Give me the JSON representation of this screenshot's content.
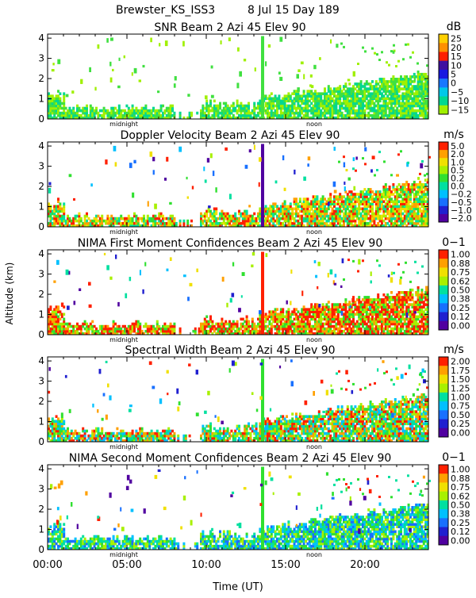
{
  "header": {
    "site": "Brewster_KS_ISS3",
    "date": "8 Jul 15 Day 189"
  },
  "axes": {
    "ylabel": "Altitude (km)",
    "xlabel": "Time (UT)",
    "xticks": [
      "00:00",
      "05:00",
      "10:00",
      "15:00",
      "20:00"
    ],
    "yticks": [
      "0",
      "1",
      "2",
      "3",
      "4"
    ],
    "midnight_label": "midnight",
    "noon_label": "noon"
  },
  "colors": {
    "scale": [
      "#5000a0",
      "#2020d0",
      "#1870ff",
      "#00c0ff",
      "#00e0a0",
      "#30e030",
      "#a8f000",
      "#f0e000",
      "#ffa000",
      "#ff2000"
    ],
    "snr_scale": [
      "#a0f000",
      "#40e040",
      "#00d890",
      "#00c8e8",
      "#1878ff",
      "#1818e0",
      "#4010a0",
      "#ff2000",
      "#ff9000",
      "#ffd000"
    ]
  },
  "chart_data": [
    {
      "type": "heatmap",
      "title": "SNR Beam 2 Azi  45 Elev 90",
      "units": "dB",
      "xlim": [
        0,
        24
      ],
      "ylim": [
        0,
        4.2
      ],
      "colorbar": [
        "25",
        "20",
        "15",
        "10",
        "5",
        "0",
        "−5",
        "−10",
        "−15"
      ]
    },
    {
      "type": "heatmap",
      "title": "Doppler Velocity Beam 2 Azi  45 Elev 90",
      "units": "m/s",
      "xlim": [
        0,
        24
      ],
      "ylim": [
        0,
        4.2
      ],
      "colorbar": [
        "5.0",
        "2.0",
        "1.0",
        "0.5",
        "0.2",
        "0.0",
        "−0.2",
        "−0.5",
        "−1.0",
        "−2.0"
      ]
    },
    {
      "type": "heatmap",
      "title": "NIMA First Moment Confidences Beam 2 Azi  45 Elev 90",
      "units": "0−1",
      "xlim": [
        0,
        24
      ],
      "ylim": [
        0,
        4.2
      ],
      "colorbar": [
        "1.00",
        "0.88",
        "0.75",
        "0.62",
        "0.50",
        "0.38",
        "0.25",
        "0.12",
        "0.00"
      ]
    },
    {
      "type": "heatmap",
      "title": "Spectral Width Beam 2 Azi  45 Elev 90",
      "units": "m/s",
      "xlim": [
        0,
        24
      ],
      "ylim": [
        0,
        4.2
      ],
      "colorbar": [
        "2.00",
        "1.75",
        "1.50",
        "1.25",
        "1.00",
        "0.75",
        "0.50",
        "0.25",
        "0.00"
      ]
    },
    {
      "type": "heatmap",
      "title": "NIMA Second Moment Confidences Beam 2 Azi  45 Elev 90",
      "units": "0−1",
      "xlim": [
        0,
        24
      ],
      "ylim": [
        0,
        4.2
      ],
      "colorbar": [
        "1.00",
        "0.88",
        "0.75",
        "0.62",
        "0.50",
        "0.38",
        "0.25",
        "0.12",
        "0.00"
      ]
    }
  ]
}
